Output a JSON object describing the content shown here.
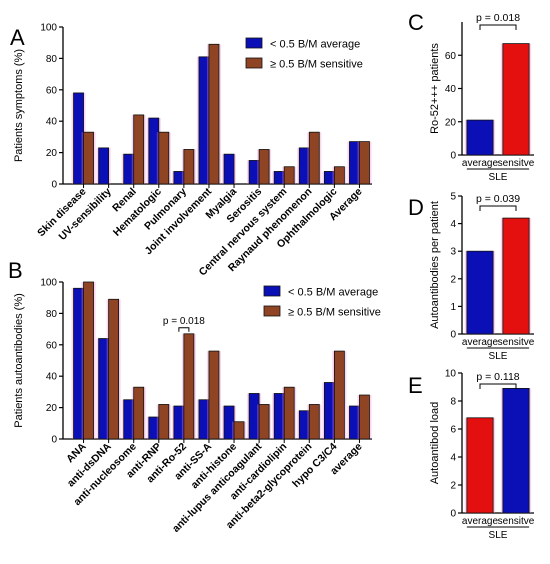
{
  "colors": {
    "blue": "#0b0fb6",
    "red": "#e3100f",
    "brown": "#8f4524",
    "glow": "#ef88d2"
  },
  "chart_data": [
    {
      "panel": "A",
      "type": "bar",
      "ylabel": "Patients symptoms (%)",
      "ylim": [
        0,
        100
      ],
      "yticks": [
        0,
        20,
        40,
        60,
        80,
        100
      ],
      "categories": [
        "Skin disease",
        "UV-sensibility",
        "Renal",
        "Hematologic",
        "Pulmonary",
        "Joint involvement",
        "Myalgia",
        "Serositis",
        "Central nervous system",
        "Raynaud phenomenon",
        "Ophthalmologic",
        "Average"
      ],
      "series": [
        {
          "name": "< 0.5 B/M average",
          "color": "blue",
          "values": [
            58,
            23,
            19,
            42,
            8,
            81,
            19,
            15,
            8,
            23,
            8,
            27
          ]
        },
        {
          "name": "≥ 0.5 B/M sensitive",
          "color": "brown",
          "values": [
            33,
            0,
            44,
            33,
            22,
            89,
            0,
            22,
            11,
            33,
            11,
            27
          ]
        }
      ],
      "legend": "top-right"
    },
    {
      "panel": "B",
      "type": "bar",
      "ylabel": "Patients autoantibodies (%)",
      "ylim": [
        0,
        100
      ],
      "yticks": [
        0,
        20,
        40,
        60,
        80,
        100
      ],
      "categories": [
        "ANA",
        "anti-dsDNA",
        "anti-nucleosome",
        "anti-RNP",
        "anti-Ro-52",
        "anti-SS-A",
        "anti-histone",
        "anti-lupus anticoagulant",
        "anti-cardiolipin",
        "anti-beta2-glycoprotein",
        "hypo C3/C4",
        "average"
      ],
      "series": [
        {
          "name": "< 0.5 B/M average",
          "color": "blue",
          "values": [
            96,
            64,
            25,
            14,
            21,
            25,
            21,
            29,
            29,
            18,
            36,
            21
          ]
        },
        {
          "name": "≥ 0.5 B/M sensitive",
          "color": "brown",
          "values": [
            100,
            89,
            33,
            22,
            67,
            56,
            11,
            22,
            33,
            22,
            56,
            28
          ]
        }
      ],
      "annotation": {
        "text": "p = 0.018",
        "category": "anti-Ro-52"
      },
      "legend": "top-right"
    },
    {
      "panel": "C",
      "type": "bar",
      "ylabel": "Ro-52+++ patients",
      "ylim": [
        0,
        80
      ],
      "yticks": [
        0,
        20,
        40,
        60
      ],
      "categories": [
        "average",
        "sensitve"
      ],
      "group_label": "SLE",
      "values": [
        21,
        67
      ],
      "bar_colors": [
        "blue",
        "red"
      ],
      "annotation": "p = 0.018"
    },
    {
      "panel": "D",
      "type": "bar",
      "ylabel": "Autoantibodies per patient",
      "ylim": [
        0,
        5
      ],
      "yticks": [
        0,
        1,
        2,
        3,
        4,
        5
      ],
      "categories": [
        "average",
        "sensitve"
      ],
      "group_label": "SLE",
      "values": [
        3.0,
        4.2
      ],
      "bar_colors": [
        "blue",
        "red"
      ],
      "annotation": "p = 0.039"
    },
    {
      "panel": "E",
      "type": "bar",
      "ylabel": "Autoantibod load",
      "ylim": [
        0,
        10
      ],
      "yticks": [
        0,
        2,
        4,
        6,
        8,
        10
      ],
      "categories": [
        "average",
        "sensitve"
      ],
      "group_label": "SLE",
      "values": [
        6.8,
        8.9
      ],
      "bar_colors": [
        "red",
        "blue"
      ],
      "annotation": "p = 0.118"
    }
  ]
}
